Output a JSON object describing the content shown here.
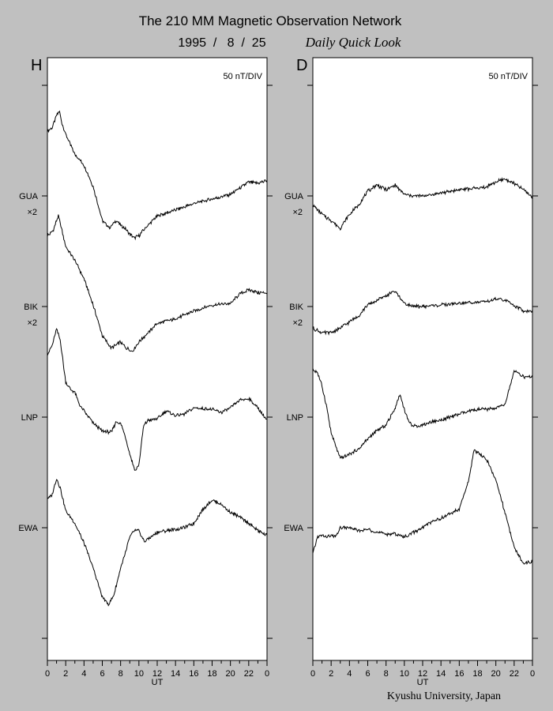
{
  "title": "The 210 MM Magnetic Observation Network",
  "date_text": "1995  /   8  /  25",
  "quicklook_label": "Daily Quick Look",
  "credit": "Kyushu University, Japan",
  "colors": {
    "background": "#c0c0c0",
    "panel": "#ffffff",
    "trace": "#000000"
  },
  "chart_data": [
    {
      "type": "line",
      "panel_label": "H",
      "scale_label": "50 nT/DIV",
      "xlabel": "UT",
      "xlim": [
        0,
        24
      ],
      "x_tick_labels": [
        "0",
        "2",
        "4",
        "6",
        "8",
        "10",
        "12",
        "14",
        "16",
        "18",
        "20",
        "22",
        "0"
      ],
      "station_labels": [
        {
          "name": "GUA",
          "multiplier": "×2"
        },
        {
          "name": "BIK",
          "multiplier": "×2"
        },
        {
          "name": "LNP",
          "multiplier": ""
        },
        {
          "name": "EWA",
          "multiplier": ""
        }
      ],
      "series": [
        {
          "name": "GUA",
          "points": [
            [
              0,
              2.1
            ],
            [
              0.5,
              2.2
            ],
            [
              1,
              2.6
            ],
            [
              1.3,
              2.75
            ],
            [
              1.6,
              2.35
            ],
            [
              2,
              2.0
            ],
            [
              3,
              1.35
            ],
            [
              4,
              1.0
            ],
            [
              5,
              0.3
            ],
            [
              6,
              -0.8
            ],
            [
              6.8,
              -1.05
            ],
            [
              7.5,
              -0.8
            ],
            [
              8,
              -0.95
            ],
            [
              8.5,
              -1.05
            ],
            [
              9,
              -1.25
            ],
            [
              9.5,
              -1.35
            ],
            [
              10,
              -1.3
            ],
            [
              10.5,
              -1.1
            ],
            [
              12,
              -0.65
            ],
            [
              14,
              -0.45
            ],
            [
              16,
              -0.25
            ],
            [
              18,
              -0.1
            ],
            [
              20,
              0.05
            ],
            [
              21,
              0.25
            ],
            [
              22,
              0.45
            ],
            [
              23,
              0.4
            ],
            [
              24,
              0.5
            ]
          ]
        },
        {
          "name": "BIK",
          "points": [
            [
              0,
              2.3
            ],
            [
              0.6,
              2.45
            ],
            [
              1.2,
              2.95
            ],
            [
              1.6,
              2.45
            ],
            [
              2,
              1.95
            ],
            [
              3,
              1.5
            ],
            [
              4,
              0.9
            ],
            [
              5,
              0.05
            ],
            [
              6,
              -0.95
            ],
            [
              7,
              -1.35
            ],
            [
              8,
              -1.15
            ],
            [
              8.6,
              -1.35
            ],
            [
              9.3,
              -1.45
            ],
            [
              10,
              -1.15
            ],
            [
              12,
              -0.55
            ],
            [
              14,
              -0.4
            ],
            [
              16,
              -0.15
            ],
            [
              18,
              0.05
            ],
            [
              20,
              0.1
            ],
            [
              21,
              0.4
            ],
            [
              22,
              0.55
            ],
            [
              23,
              0.45
            ],
            [
              24,
              0.45
            ]
          ]
        },
        {
          "name": "LNP",
          "points": [
            [
              0,
              2.05
            ],
            [
              0.5,
              2.3
            ],
            [
              1,
              2.85
            ],
            [
              1.4,
              2.5
            ],
            [
              2,
              1.15
            ],
            [
              2.5,
              0.9
            ],
            [
              3,
              0.8
            ],
            [
              3.5,
              0.4
            ],
            [
              4,
              0.2
            ],
            [
              5,
              -0.2
            ],
            [
              6,
              -0.45
            ],
            [
              7,
              -0.5
            ],
            [
              7.5,
              -0.15
            ],
            [
              8,
              -0.2
            ],
            [
              8.5,
              -0.6
            ],
            [
              9,
              -1.2
            ],
            [
              9.6,
              -1.75
            ],
            [
              10,
              -1.55
            ],
            [
              10.5,
              -0.3
            ],
            [
              11,
              -0.1
            ],
            [
              12,
              -0.05
            ],
            [
              13,
              0.2
            ],
            [
              14,
              0.05
            ],
            [
              15,
              0.1
            ],
            [
              16,
              0.3
            ],
            [
              18,
              0.25
            ],
            [
              19,
              0.15
            ],
            [
              20,
              0.3
            ],
            [
              21,
              0.55
            ],
            [
              22,
              0.6
            ],
            [
              23,
              0.3
            ],
            [
              24,
              -0.1
            ]
          ]
        },
        {
          "name": "EWA",
          "points": [
            [
              0,
              0.95
            ],
            [
              0.5,
              1.05
            ],
            [
              1,
              1.6
            ],
            [
              1.4,
              1.3
            ],
            [
              2,
              0.55
            ],
            [
              3,
              0.15
            ],
            [
              4,
              -0.5
            ],
            [
              5,
              -1.3
            ],
            [
              6,
              -2.25
            ],
            [
              6.7,
              -2.5
            ],
            [
              7.3,
              -2.15
            ],
            [
              8,
              -1.3
            ],
            [
              8.6,
              -0.75
            ],
            [
              9,
              -0.3
            ],
            [
              9.5,
              -0.1
            ],
            [
              10,
              -0.1
            ],
            [
              10.6,
              -0.45
            ],
            [
              12,
              -0.15
            ],
            [
              14,
              -0.05
            ],
            [
              15,
              0.0
            ],
            [
              16,
              0.15
            ],
            [
              17,
              0.6
            ],
            [
              18,
              0.9
            ],
            [
              19,
              0.75
            ],
            [
              20,
              0.5
            ],
            [
              21,
              0.35
            ],
            [
              22,
              0.15
            ],
            [
              23,
              -0.1
            ],
            [
              24,
              -0.25
            ]
          ]
        }
      ]
    },
    {
      "type": "line",
      "panel_label": "D",
      "scale_label": "50 nT/DIV",
      "xlabel": "UT",
      "xlim": [
        0,
        24
      ],
      "x_tick_labels": [
        "0",
        "2",
        "4",
        "6",
        "8",
        "10",
        "12",
        "14",
        "16",
        "18",
        "20",
        "22",
        "0"
      ],
      "station_labels": [
        {
          "name": "GUA",
          "multiplier": "×2"
        },
        {
          "name": "BIK",
          "multiplier": "×2"
        },
        {
          "name": "LNP",
          "multiplier": ""
        },
        {
          "name": "EWA",
          "multiplier": ""
        }
      ],
      "series": [
        {
          "name": "GUA",
          "points": [
            [
              0,
              -0.3
            ],
            [
              1,
              -0.6
            ],
            [
              2,
              -0.8
            ],
            [
              3,
              -1.05
            ],
            [
              4,
              -0.6
            ],
            [
              5,
              -0.3
            ],
            [
              6,
              0.15
            ],
            [
              7,
              0.35
            ],
            [
              8,
              0.2
            ],
            [
              9,
              0.35
            ],
            [
              10,
              0.05
            ],
            [
              11,
              0.0
            ],
            [
              12,
              0.0
            ],
            [
              14,
              0.1
            ],
            [
              16,
              0.2
            ],
            [
              18,
              0.25
            ],
            [
              19,
              0.3
            ],
            [
              20,
              0.45
            ],
            [
              21,
              0.55
            ],
            [
              22,
              0.4
            ],
            [
              23,
              0.2
            ],
            [
              24,
              -0.05
            ]
          ]
        },
        {
          "name": "BIK",
          "points": [
            [
              0,
              -0.7
            ],
            [
              1,
              -0.85
            ],
            [
              2,
              -0.85
            ],
            [
              3,
              -0.7
            ],
            [
              4,
              -0.5
            ],
            [
              5,
              -0.3
            ],
            [
              6,
              0.05
            ],
            [
              7,
              0.2
            ],
            [
              8,
              0.35
            ],
            [
              9,
              0.5
            ],
            [
              10,
              0.1
            ],
            [
              11,
              0.0
            ],
            [
              12,
              0.0
            ],
            [
              14,
              0.05
            ],
            [
              16,
              0.1
            ],
            [
              18,
              0.15
            ],
            [
              19,
              0.15
            ],
            [
              20,
              0.25
            ],
            [
              21,
              0.2
            ],
            [
              22,
              0.05
            ],
            [
              23,
              -0.15
            ],
            [
              24,
              -0.15
            ]
          ]
        },
        {
          "name": "LNP",
          "points": [
            [
              0,
              1.55
            ],
            [
              0.5,
              1.45
            ],
            [
              1,
              1.0
            ],
            [
              1.5,
              0.35
            ],
            [
              2,
              -0.5
            ],
            [
              2.5,
              -0.95
            ],
            [
              3,
              -1.35
            ],
            [
              4,
              -1.2
            ],
            [
              5,
              -1.05
            ],
            [
              6,
              -0.7
            ],
            [
              7,
              -0.45
            ],
            [
              8,
              -0.25
            ],
            [
              9,
              0.3
            ],
            [
              9.5,
              0.75
            ],
            [
              10,
              0.25
            ],
            [
              10.5,
              -0.15
            ],
            [
              11,
              -0.3
            ],
            [
              12,
              -0.25
            ],
            [
              13,
              -0.15
            ],
            [
              14,
              -0.1
            ],
            [
              16,
              0.1
            ],
            [
              18,
              0.25
            ],
            [
              19,
              0.25
            ],
            [
              20,
              0.3
            ],
            [
              21,
              0.4
            ],
            [
              22,
              1.5
            ],
            [
              23,
              1.3
            ],
            [
              24,
              1.3
            ]
          ]
        },
        {
          "name": "EWA",
          "points": [
            [
              0,
              -0.85
            ],
            [
              0.5,
              -0.3
            ],
            [
              1,
              -0.25
            ],
            [
              1.5,
              -0.3
            ],
            [
              2,
              -0.25
            ],
            [
              2.5,
              -0.3
            ],
            [
              3,
              0.0
            ],
            [
              4,
              0.0
            ],
            [
              5,
              -0.1
            ],
            [
              6,
              -0.05
            ],
            [
              7,
              -0.15
            ],
            [
              8,
              -0.2
            ],
            [
              9,
              -0.2
            ],
            [
              10,
              -0.3
            ],
            [
              11,
              -0.15
            ],
            [
              12,
              0.0
            ],
            [
              13,
              0.2
            ],
            [
              14,
              0.3
            ],
            [
              15,
              0.45
            ],
            [
              16,
              0.6
            ],
            [
              17,
              1.5
            ],
            [
              17.6,
              2.5
            ],
            [
              18,
              2.45
            ],
            [
              19,
              2.2
            ],
            [
              20,
              1.55
            ],
            [
              21,
              0.5
            ],
            [
              22,
              -0.65
            ],
            [
              23,
              -1.15
            ],
            [
              24,
              -1.1
            ]
          ]
        }
      ]
    }
  ]
}
